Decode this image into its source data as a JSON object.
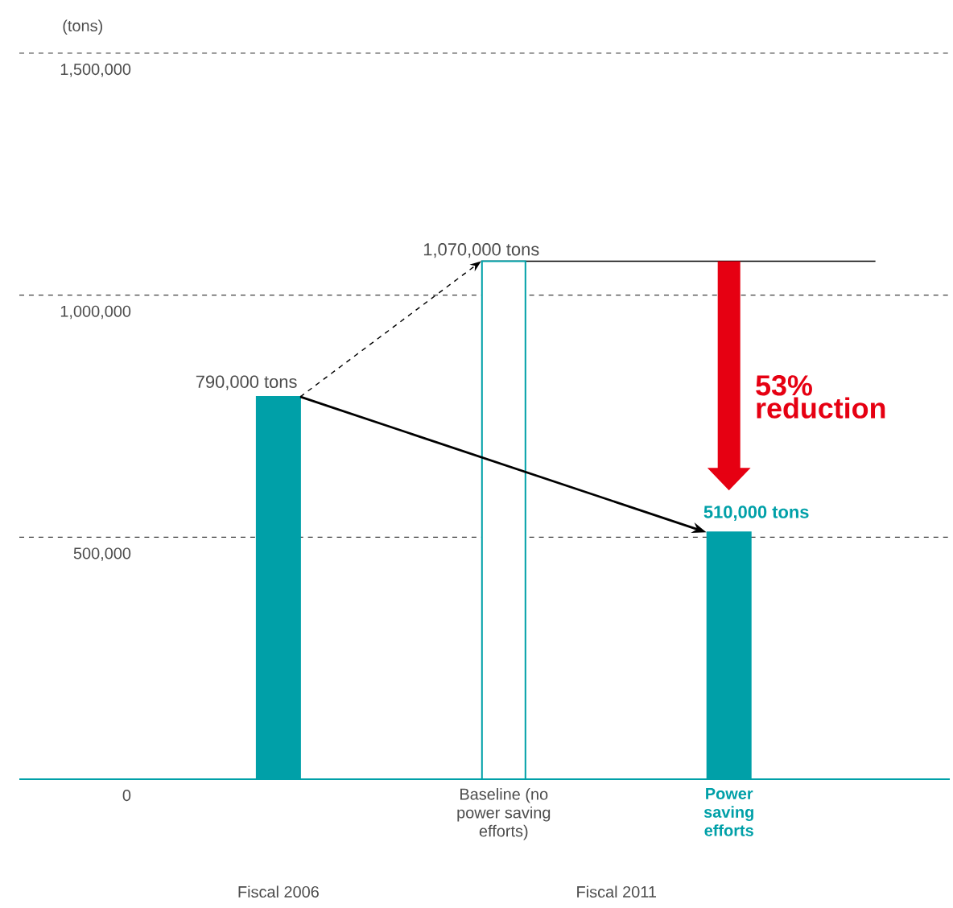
{
  "chart_data": {
    "type": "bar",
    "ylabel": "(tons)",
    "categories": [
      null,
      "Baseline (no power saving efforts)",
      "Power saving efforts"
    ],
    "values": [
      790000,
      1070000,
      510000
    ],
    "colors": [
      "#00a0a8",
      "#ffffff",
      "#00a0a8"
    ],
    "value_labels": [
      "790,000 tons",
      "1,070,000 tons",
      "510,000 tons"
    ],
    "ylim": [
      0,
      1500000
    ],
    "yticks": [
      0,
      {
        "value": 500000,
        "label": "500,000"
      },
      {
        "value": 1000000,
        "label": "1,000,000"
      },
      {
        "value": 1500000,
        "label": "1,500,000"
      }
    ],
    "grid": "y",
    "ref_lines": [
      {
        "axis": "y",
        "value": 1070000
      }
    ],
    "annotations": [
      "53% reduction",
      "Fiscal 2006",
      "Fiscal 2011"
    ]
  }
}
